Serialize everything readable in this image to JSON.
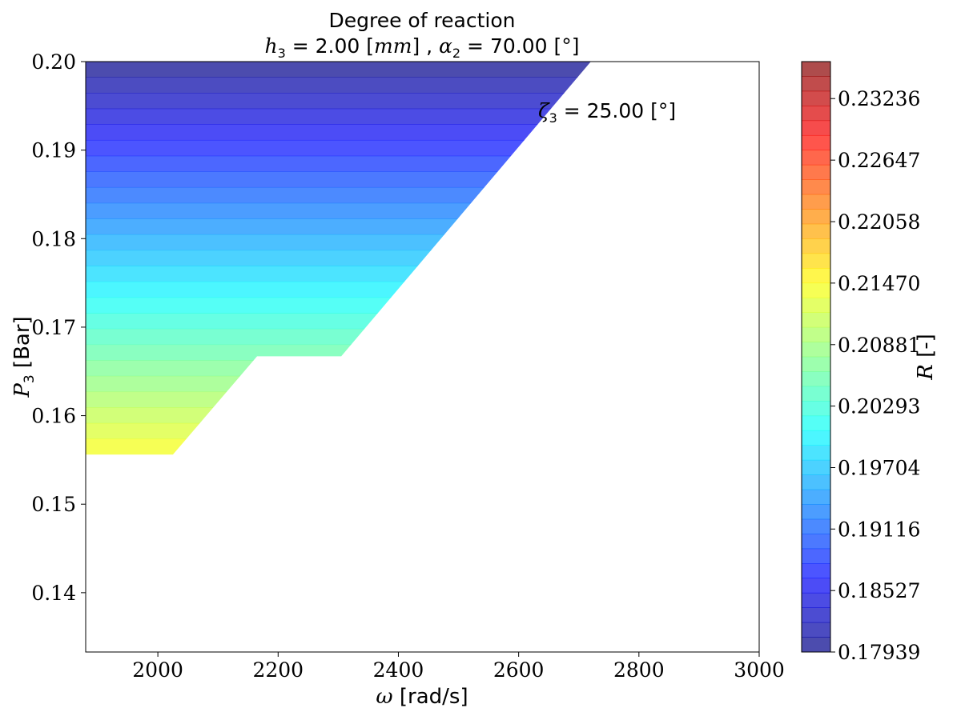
{
  "chart_data": {
    "type": "contour",
    "title": "Degree of reaction",
    "subtitle": {
      "h_symbol": "h",
      "h_sub": "3",
      "h_value": "2.00",
      "h_unit": "mm",
      "alpha_symbol": "α",
      "alpha_sub": "2",
      "alpha_value": "70.00 [°]"
    },
    "annotation": {
      "symbol": "ζ",
      "sub": "3",
      "value": "25.00 [°]"
    },
    "xlabel": {
      "symbol": "ω",
      "unit": "[rad/s]"
    },
    "ylabel": {
      "symbol": "P",
      "sub": "3",
      "unit": "[Bar]"
    },
    "xlim": [
      1880,
      3000
    ],
    "ylim": [
      0.1333,
      0.2
    ],
    "xticks": [
      "2000",
      "2200",
      "2400",
      "2600",
      "2800",
      "3000"
    ],
    "xtick_values": [
      2000,
      2200,
      2400,
      2600,
      2800,
      3000
    ],
    "yticks": [
      "0.14",
      "0.15",
      "0.16",
      "0.17",
      "0.18",
      "0.19",
      "0.20"
    ],
    "ytick_values": [
      0.14,
      0.15,
      0.16,
      0.17,
      0.18,
      0.19,
      0.2
    ],
    "colorbar": {
      "label_symbol": "R",
      "label_unit": "[-]",
      "range": [
        0.17939,
        0.2359
      ],
      "ticks": [
        "0.17939",
        "0.18527",
        "0.19116",
        "0.19704",
        "0.20293",
        "0.20881",
        "0.21470",
        "0.22058",
        "0.22647",
        "0.23236"
      ],
      "tick_values": [
        0.17939,
        0.18527,
        0.19116,
        0.19704,
        0.20293,
        0.20881,
        0.2147,
        0.22058,
        0.22647,
        0.23236
      ],
      "levels": 40,
      "colormap": "jet",
      "alpha": 0.7
    },
    "region_boundary": [
      [
        1880,
        0.2
      ],
      [
        2720,
        0.2
      ],
      [
        2305,
        0.1667
      ],
      [
        2165,
        0.1667
      ],
      [
        2025,
        0.1556
      ],
      [
        1880,
        0.1556
      ]
    ],
    "field": {
      "p_min": 0.1556,
      "p_max": 0.2,
      "r_at_p_min": 0.2147,
      "r_at_p_max": 0.17939
    }
  }
}
